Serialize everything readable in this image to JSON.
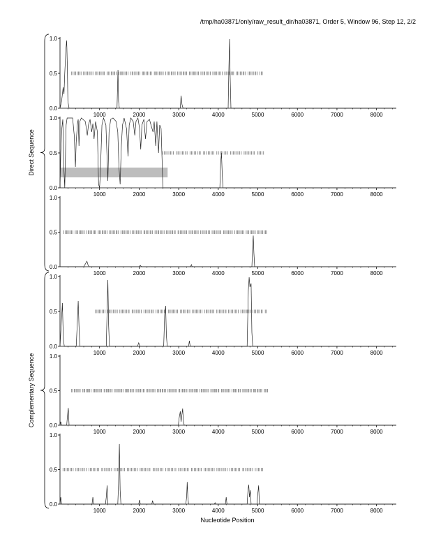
{
  "title": "/tmp/ha03871/only/raw_result_dir/ha03871, Order 5, Window 96, Step 12, 2/2",
  "chart_data": {
    "type": "line",
    "xlabel": "Nucleotide Position",
    "xlim": [
      0,
      8500
    ],
    "ylim": [
      0,
      1
    ],
    "xticks": [
      1000,
      2000,
      3000,
      4000,
      5000,
      6000,
      7000,
      8000
    ],
    "yticks": [
      "0.0",
      "0.5",
      "1.0"
    ],
    "groups": [
      {
        "label": "Direct Sequence",
        "panels": [
          0,
          1,
          2
        ]
      },
      {
        "label": "Complementary Sequence",
        "panels": [
          3,
          4,
          5
        ]
      }
    ],
    "panels": [
      {
        "marker_y": 0.5,
        "marker_range": [
          300,
          5150
        ],
        "marker_step": 33,
        "highlight": null,
        "points": [
          [
            0,
            0
          ],
          [
            40,
            0.1
          ],
          [
            80,
            0.3
          ],
          [
            100,
            0.2
          ],
          [
            120,
            0.5
          ],
          [
            150,
            0.85
          ],
          [
            170,
            0.97
          ],
          [
            185,
            0.6
          ],
          [
            200,
            0.1
          ],
          [
            230,
            0
          ],
          [
            1440,
            0
          ],
          [
            1465,
            0.55
          ],
          [
            1480,
            0.1
          ],
          [
            1500,
            0
          ],
          [
            3040,
            0
          ],
          [
            3060,
            0.18
          ],
          [
            3085,
            0.05
          ],
          [
            3110,
            0
          ],
          [
            4250,
            0
          ],
          [
            4270,
            0.6
          ],
          [
            4285,
            0.99
          ],
          [
            4300,
            0.5
          ],
          [
            4320,
            0
          ],
          [
            8500,
            0
          ]
        ]
      },
      {
        "marker_y": 0.5,
        "marker_range": [
          2600,
          5150
        ],
        "marker_step": 38,
        "highlight": [
          0,
          2720,
          0.15,
          0.29
        ],
        "points": [
          [
            0,
            0
          ],
          [
            20,
            0.5
          ],
          [
            45,
            0.85
          ],
          [
            70,
            0.98
          ],
          [
            95,
            0.3
          ],
          [
            120,
            0
          ],
          [
            155,
            0.9
          ],
          [
            180,
            1
          ],
          [
            320,
            1
          ],
          [
            360,
            0.75
          ],
          [
            390,
            0.3
          ],
          [
            410,
            0.65
          ],
          [
            440,
            0.92
          ],
          [
            460,
            0.98
          ],
          [
            480,
            0.6
          ],
          [
            500,
            0.95
          ],
          [
            540,
            1
          ],
          [
            640,
            0.95
          ],
          [
            690,
            0.75
          ],
          [
            720,
            0.9
          ],
          [
            760,
            0.98
          ],
          [
            800,
            0.8
          ],
          [
            830,
            0.92
          ],
          [
            860,
            0.7
          ],
          [
            900,
            0.95
          ],
          [
            945,
            0.8
          ],
          [
            975,
            0.05
          ],
          [
            1000,
            0
          ],
          [
            1020,
            0.2
          ],
          [
            1060,
            0.9
          ],
          [
            1100,
            1
          ],
          [
            1160,
            0.9
          ],
          [
            1185,
            0.5
          ],
          [
            1210,
            0.1
          ],
          [
            1240,
            0.8
          ],
          [
            1280,
            0.98
          ],
          [
            1340,
            1
          ],
          [
            1420,
            0.95
          ],
          [
            1460,
            0.8
          ],
          [
            1490,
            0.3
          ],
          [
            1520,
            0.05
          ],
          [
            1550,
            0.6
          ],
          [
            1580,
            0.9
          ],
          [
            1620,
            1
          ],
          [
            1680,
            0.85
          ],
          [
            1720,
            0.45
          ],
          [
            1750,
            0.9
          ],
          [
            1790,
            1
          ],
          [
            1850,
            0.95
          ],
          [
            1890,
            0.75
          ],
          [
            1920,
            0.95
          ],
          [
            1970,
            1
          ],
          [
            2010,
            0.85
          ],
          [
            2040,
            0.55
          ],
          [
            2070,
            0.9
          ],
          [
            2120,
            0.98
          ],
          [
            2160,
            0.7
          ],
          [
            2200,
            0.95
          ],
          [
            2260,
            0.98
          ],
          [
            2300,
            0.9
          ],
          [
            2350,
            0.8
          ],
          [
            2380,
            0.95
          ],
          [
            2420,
            0.6
          ],
          [
            2450,
            0.95
          ],
          [
            2490,
            0.5
          ],
          [
            2520,
            0.9
          ],
          [
            2555,
            0.85
          ],
          [
            2580,
            0.4
          ],
          [
            2600,
            0
          ],
          [
            2620,
            0
          ],
          [
            4040,
            0
          ],
          [
            4060,
            0.35
          ],
          [
            4080,
            0.5
          ],
          [
            4100,
            0.2
          ],
          [
            4120,
            0
          ],
          [
            8500,
            0
          ]
        ]
      },
      {
        "marker_y": 0.5,
        "marker_range": [
          100,
          5250
        ],
        "marker_step": 32,
        "highlight": null,
        "points": [
          [
            0,
            0
          ],
          [
            600,
            0
          ],
          [
            650,
            0.05
          ],
          [
            680,
            0.08
          ],
          [
            710,
            0.02
          ],
          [
            740,
            0
          ],
          [
            2000,
            0
          ],
          [
            2030,
            0.02
          ],
          [
            2060,
            0
          ],
          [
            3300,
            0
          ],
          [
            3320,
            0.03
          ],
          [
            3340,
            0
          ],
          [
            4850,
            0
          ],
          [
            4870,
            0.3
          ],
          [
            4885,
            0.45
          ],
          [
            4900,
            0.2
          ],
          [
            4920,
            0
          ],
          [
            8500,
            0
          ]
        ]
      },
      {
        "marker_y": 0.5,
        "marker_range": [
          900,
          5250
        ],
        "marker_step": 34,
        "highlight": null,
        "points": [
          [
            0,
            0
          ],
          [
            30,
            0.3
          ],
          [
            60,
            0.62
          ],
          [
            85,
            0.1
          ],
          [
            110,
            0
          ],
          [
            410,
            0
          ],
          [
            430,
            0.25
          ],
          [
            460,
            0.65
          ],
          [
            480,
            0.3
          ],
          [
            500,
            0
          ],
          [
            1170,
            0
          ],
          [
            1190,
            0.5
          ],
          [
            1210,
            0.95
          ],
          [
            1230,
            0.3
          ],
          [
            1250,
            0
          ],
          [
            1960,
            0
          ],
          [
            1990,
            0.05
          ],
          [
            2020,
            0
          ],
          [
            2620,
            0
          ],
          [
            2645,
            0.45
          ],
          [
            2670,
            0.58
          ],
          [
            2690,
            0.15
          ],
          [
            2710,
            0
          ],
          [
            3250,
            0
          ],
          [
            3270,
            0.08
          ],
          [
            3290,
            0
          ],
          [
            4730,
            0
          ],
          [
            4760,
            0.8
          ],
          [
            4780,
            0.99
          ],
          [
            4800,
            0.85
          ],
          [
            4830,
            0.9
          ],
          [
            4850,
            0.2
          ],
          [
            4870,
            0
          ],
          [
            8500,
            0
          ]
        ]
      },
      {
        "marker_y": 0.5,
        "marker_range": [
          300,
          5250
        ],
        "marker_step": 30,
        "highlight": null,
        "points": [
          [
            0,
            0
          ],
          [
            20,
            0.05
          ],
          [
            40,
            0
          ],
          [
            170,
            0
          ],
          [
            190,
            0.15
          ],
          [
            210,
            0.25
          ],
          [
            230,
            0
          ],
          [
            2990,
            0
          ],
          [
            3010,
            0.1
          ],
          [
            3040,
            0.2
          ],
          [
            3060,
            0.05
          ],
          [
            3080,
            0.15
          ],
          [
            3100,
            0.24
          ],
          [
            3120,
            0.05
          ],
          [
            3140,
            0
          ],
          [
            8500,
            0
          ]
        ]
      },
      {
        "marker_y": 0.5,
        "marker_range": [
          80,
          5150
        ],
        "marker_step": 36,
        "highlight": null,
        "points": [
          [
            0,
            0
          ],
          [
            20,
            0.1
          ],
          [
            40,
            0
          ],
          [
            810,
            0
          ],
          [
            830,
            0.1
          ],
          [
            850,
            0
          ],
          [
            1150,
            0
          ],
          [
            1170,
            0.1
          ],
          [
            1190,
            0.27
          ],
          [
            1210,
            0
          ],
          [
            1460,
            0
          ],
          [
            1480,
            0.3
          ],
          [
            1500,
            0.87
          ],
          [
            1520,
            0.2
          ],
          [
            1540,
            0
          ],
          [
            1990,
            0
          ],
          [
            2010,
            0.06
          ],
          [
            2030,
            0
          ],
          [
            2320,
            0
          ],
          [
            2340,
            0.05
          ],
          [
            2360,
            0
          ],
          [
            3180,
            0
          ],
          [
            3200,
            0.1
          ],
          [
            3215,
            0.32
          ],
          [
            3230,
            0.1
          ],
          [
            3250,
            0
          ],
          [
            3900,
            0
          ],
          [
            3920,
            0.02
          ],
          [
            3940,
            0
          ],
          [
            4180,
            0
          ],
          [
            4200,
            0.1
          ],
          [
            4220,
            0
          ],
          [
            4730,
            0
          ],
          [
            4750,
            0.2
          ],
          [
            4770,
            0.28
          ],
          [
            4790,
            0.1
          ],
          [
            4810,
            0.2
          ],
          [
            4830,
            0
          ],
          [
            4980,
            0
          ],
          [
            5000,
            0.15
          ],
          [
            5020,
            0.27
          ],
          [
            5040,
            0
          ],
          [
            8500,
            0
          ]
        ]
      }
    ]
  }
}
